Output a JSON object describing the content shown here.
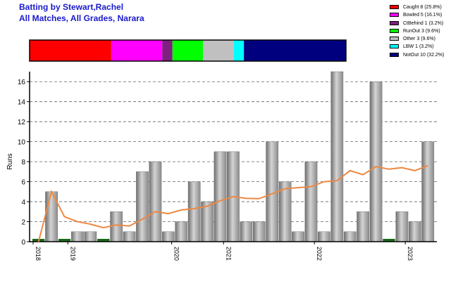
{
  "header": {
    "title": "Batting by Stewart,Rachel",
    "subtitle": "All Matches, All Grades, Narara"
  },
  "dismissals": [
    {
      "label": "Caught 8 (25.8%)",
      "count": 8,
      "color": "#ff0000"
    },
    {
      "label": "Bowled 5 (16.1%)",
      "count": 5,
      "color": "#ff00ff"
    },
    {
      "label": "CtBehind 1 (3.2%)",
      "count": 1,
      "color": "#7f1f7f"
    },
    {
      "label": "RunOut 3 (9.6%)",
      "count": 3,
      "color": "#00ff00"
    },
    {
      "label": "Other 3 (9.6%)",
      "count": 3,
      "color": "#c0c0c0"
    },
    {
      "label": "LBW 1 (3.2%)",
      "count": 1,
      "color": "#00ffff"
    },
    {
      "label": "NotOut 10 (32.2%)",
      "count": 10,
      "color": "#00007f"
    }
  ],
  "chart_data": {
    "type": "bar",
    "ylabel": "Runs",
    "ylim": [
      0,
      17
    ],
    "yticks": [
      0,
      2,
      4,
      6,
      8,
      10,
      12,
      14,
      16
    ],
    "grid": true,
    "x_year_labels": [
      {
        "label": "2018",
        "after_innings": 0
      },
      {
        "label": "2019",
        "after_innings": 3
      },
      {
        "label": "2020",
        "after_innings": 11
      },
      {
        "label": "2021",
        "after_innings": 15
      },
      {
        "label": "2022",
        "after_innings": 22
      },
      {
        "label": "2023",
        "after_innings": 29
      }
    ],
    "series": [
      {
        "name": "Runs",
        "values": [
          0,
          5,
          0,
          1,
          1,
          0,
          3,
          1,
          7,
          8,
          1,
          2,
          6,
          4,
          9,
          9,
          2,
          2,
          10,
          6,
          1,
          8,
          1,
          17,
          1,
          3,
          16,
          0,
          3,
          2,
          10
        ]
      },
      {
        "name": "Average",
        "values": [
          0,
          5,
          2.5,
          2,
          1.75,
          1.4,
          1.67,
          1.57,
          2.25,
          3,
          2.8,
          3.17,
          3.3,
          3.55,
          4.09,
          4.5,
          4.33,
          4.3,
          4.79,
          5.3,
          5.4,
          5.5,
          6.0,
          6.1,
          7.1,
          6.7,
          7.5,
          7.25,
          7.4,
          7.1,
          7.6
        ]
      }
    ],
    "zero_innings_color": "#1a6b1a",
    "bar_color": "#a8a8a8",
    "line_color": "#ee8844"
  }
}
